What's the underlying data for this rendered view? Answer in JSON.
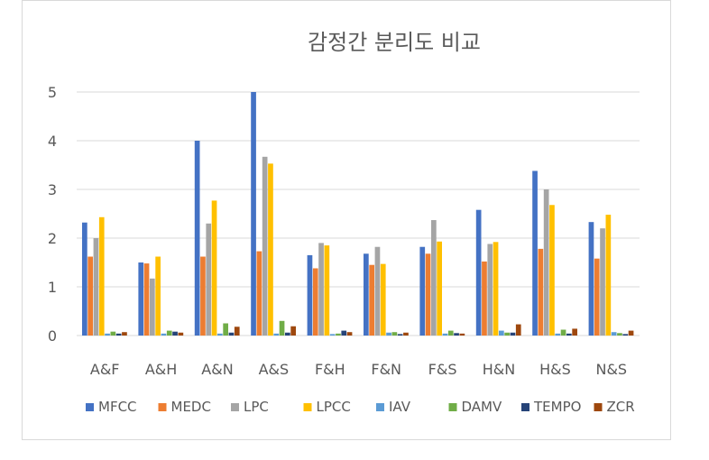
{
  "chart_data": {
    "type": "bar",
    "title": "감정간 분리도 비교",
    "xlabel": "",
    "ylabel": "",
    "ylim": [
      0,
      5
    ],
    "yticks": [
      "0",
      "1",
      "2",
      "3",
      "4",
      "5"
    ],
    "grid": true,
    "legend_position": "bottom",
    "categories": [
      "A&F",
      "A&H",
      "A&N",
      "A&S",
      "F&H",
      "F&N",
      "F&S",
      "H&N",
      "H&S",
      "N&S"
    ],
    "series": [
      {
        "name": "MFCC",
        "color": "#4472C4",
        "values": [
          2.32,
          1.5,
          4.0,
          5.0,
          1.65,
          1.68,
          1.82,
          2.58,
          3.38,
          2.33
        ]
      },
      {
        "name": "MEDC",
        "color": "#ED7D31",
        "values": [
          1.62,
          1.48,
          1.62,
          1.73,
          1.38,
          1.45,
          1.68,
          1.52,
          1.78,
          1.58
        ]
      },
      {
        "name": "LPC",
        "color": "#A5A5A5",
        "values": [
          2.0,
          1.17,
          2.3,
          3.67,
          1.9,
          1.82,
          2.37,
          1.88,
          3.0,
          2.2
        ]
      },
      {
        "name": "LPCC",
        "color": "#FFC000",
        "values": [
          2.43,
          1.62,
          2.77,
          3.53,
          1.85,
          1.47,
          1.93,
          1.92,
          2.68,
          2.48
        ]
      },
      {
        "name": "IAV",
        "color": "#5B9BD5",
        "values": [
          0.04,
          0.04,
          0.04,
          0.04,
          0.03,
          0.06,
          0.04,
          0.1,
          0.04,
          0.07
        ]
      },
      {
        "name": "DAMV",
        "color": "#70AD47",
        "values": [
          0.08,
          0.1,
          0.25,
          0.3,
          0.04,
          0.07,
          0.1,
          0.06,
          0.12,
          0.05
        ]
      },
      {
        "name": "TEMPO",
        "color": "#264478",
        "values": [
          0.04,
          0.08,
          0.06,
          0.06,
          0.1,
          0.03,
          0.05,
          0.06,
          0.04,
          0.03
        ]
      },
      {
        "name": "ZCR",
        "color": "#9E480E",
        "values": [
          0.07,
          0.06,
          0.18,
          0.19,
          0.07,
          0.06,
          0.04,
          0.23,
          0.14,
          0.1
        ]
      }
    ]
  }
}
